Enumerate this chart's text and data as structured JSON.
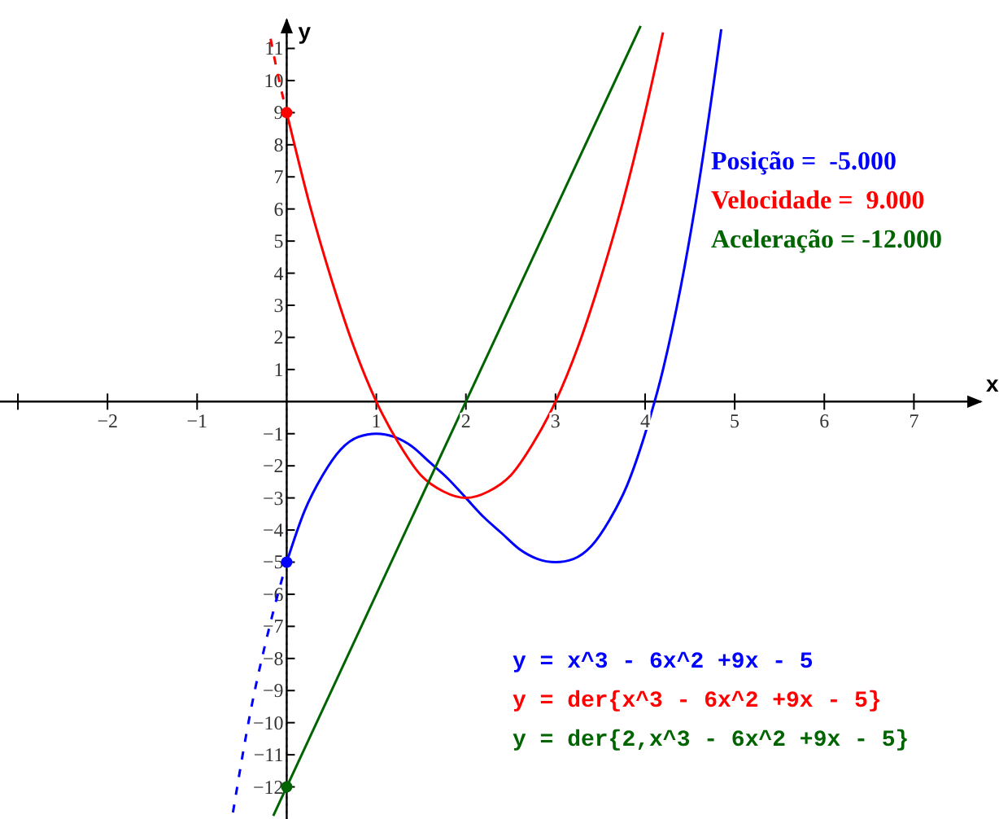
{
  "chart_data": {
    "type": "line",
    "xlabel": "x",
    "ylabel": "y",
    "xlim": [
      -3.2,
      7.75
    ],
    "ylim": [
      -13,
      11.9
    ],
    "xticks": [
      {
        "value": -3,
        "label": null
      },
      -2,
      -1,
      1,
      2,
      3,
      4,
      5,
      6,
      7
    ],
    "yticks": [
      -12,
      -11,
      -10,
      -9,
      -8,
      -7,
      -6,
      -5,
      -4,
      -3,
      -2,
      -1,
      1,
      2,
      3,
      4,
      5,
      6,
      7,
      8,
      9,
      10,
      11
    ],
    "grid": false,
    "legend": "bottom right",
    "line_style": "solid",
    "marker": "none",
    "ref_lines": [
      {
        "axis": "x",
        "value": 0,
        "label": null,
        "color": "#556655",
        "line_style": "dotted"
      }
    ],
    "annotations": [
      "Posição =  -5.000",
      "Velocidade =  9.000",
      "Aceleração = -12.000"
    ],
    "series": [
      {
        "name": "y = x^3 - 6x^2 +9x - 5",
        "color": "#0000ff",
        "x": [
          0,
          0.2,
          0.4,
          0.6,
          0.8,
          1,
          1.2,
          1.4,
          1.6,
          1.8,
          2,
          2.2,
          2.4,
          2.6,
          2.8,
          3,
          3.2,
          3.4,
          3.6,
          3.8,
          4,
          4.2,
          4.4,
          4.6,
          4.8,
          4.85
        ],
        "values": [
          -5,
          -3.4,
          -2.3,
          -1.5,
          -1.1,
          -1,
          -1.1,
          -1.4,
          -1.9,
          -2.4,
          -3,
          -3.6,
          -4.1,
          -4.6,
          -4.9,
          -5,
          -4.9,
          -4.5,
          -3.7,
          -2.6,
          -1,
          1,
          3.6,
          6.8,
          10.6,
          11.6
        ]
      },
      {
        "name": "y = der{x^3 - 6x^2 +9x - 5}",
        "color": "#ff0000",
        "x": [
          0,
          0.25,
          0.5,
          0.75,
          1,
          1.25,
          1.5,
          1.75,
          2,
          2.25,
          2.5,
          2.75,
          3,
          3.25,
          3.5,
          3.75,
          4,
          4.2
        ],
        "values": [
          9,
          6.2,
          3.8,
          1.7,
          0,
          -1.3,
          -2.3,
          -2.8,
          -3,
          -2.8,
          -2.3,
          -1.3,
          0,
          1.7,
          3.8,
          6.2,
          9,
          11.5
        ]
      },
      {
        "name": "y = der{2,x^3 - 6x^2 +9x - 5}",
        "color": "#006400",
        "x": [
          -0.15,
          0,
          3.95
        ],
        "values": [
          -12.9,
          -12,
          11.7
        ]
      },
      {
        "color": "#0000ff",
        "line_style": "dashed",
        "x": [
          -0.6,
          -0.4,
          -0.2,
          0
        ],
        "values": [
          -12.8,
          -9.6,
          -7.1,
          -5
        ]
      },
      {
        "color": "#ff0000",
        "line_style": "dashed",
        "x": [
          -0.18,
          -0.1,
          0
        ],
        "values": [
          11.3,
          10.2,
          9
        ]
      },
      {
        "type": "scatter",
        "marker": "circle",
        "x": [
          0,
          0,
          0
        ],
        "values": [
          -5,
          9,
          -12
        ],
        "colors": [
          "#0000ff",
          "#ff0000",
          "#006400"
        ]
      }
    ]
  }
}
